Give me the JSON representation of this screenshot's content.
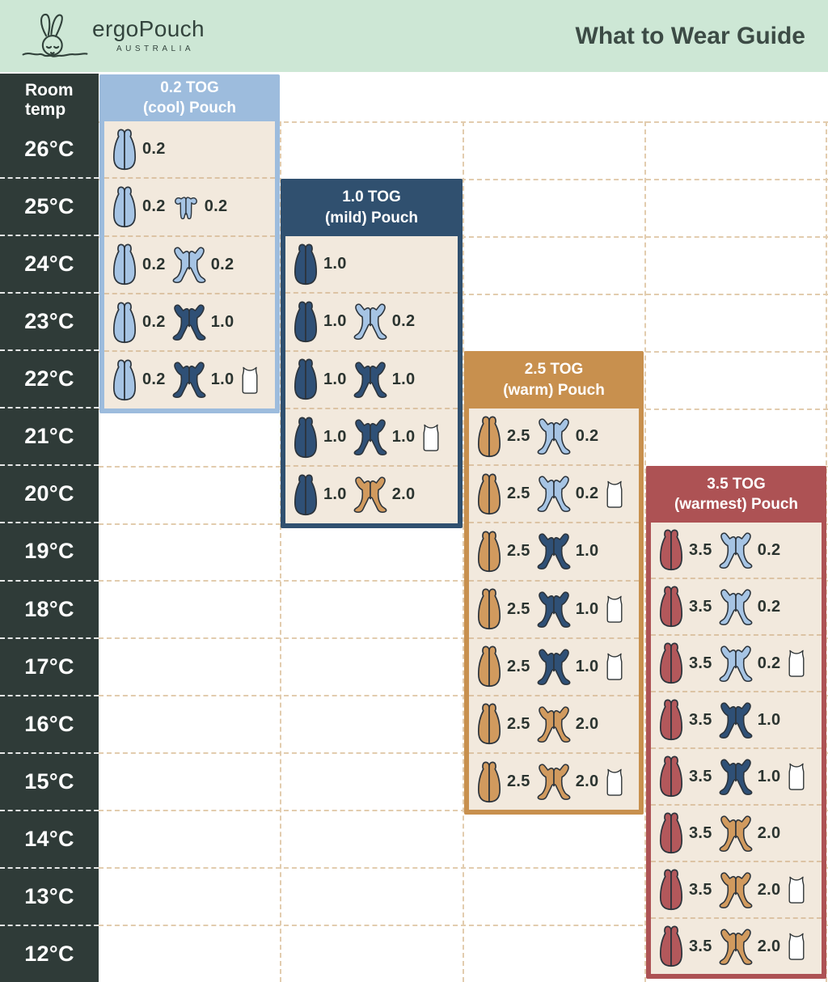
{
  "header": {
    "brand": "ergoPouch",
    "brand_sub": "AUSTRALIA",
    "title": "What to Wear Guide"
  },
  "temp_column": {
    "header": "Room temp",
    "temps": [
      "26°C",
      "25°C",
      "24°C",
      "23°C",
      "22°C",
      "21°C",
      "20°C",
      "19°C",
      "18°C",
      "17°C",
      "16°C",
      "15°C",
      "14°C",
      "13°C",
      "12°C"
    ]
  },
  "chart_data": {
    "type": "table",
    "title": "What to Wear Guide",
    "row_axis": "Room temp (°C)",
    "columns": [
      "0.2 TOG (cool) Pouch",
      "1.0 TOG (mild) Pouch",
      "2.5 TOG (warm) Pouch",
      "3.5 TOG (warmest) Pouch"
    ],
    "panels": [
      {
        "tog": "0.2 TOG",
        "label": "(cool) Pouch",
        "color_key": "lightblue",
        "rows": [
          {
            "temp": "26°C",
            "items": [
              {
                "icon": "pouch",
                "color": "lightblue",
                "value": "0.2"
              }
            ]
          },
          {
            "temp": "25°C",
            "items": [
              {
                "icon": "pouch",
                "color": "lightblue",
                "value": "0.2"
              },
              {
                "icon": "romper",
                "color": "lightblue",
                "value": "0.2"
              }
            ]
          },
          {
            "temp": "24°C",
            "items": [
              {
                "icon": "pouch",
                "color": "lightblue",
                "value": "0.2"
              },
              {
                "icon": "onesie",
                "color": "lightblue",
                "value": "0.2"
              }
            ]
          },
          {
            "temp": "23°C",
            "items": [
              {
                "icon": "pouch",
                "color": "lightblue",
                "value": "0.2"
              },
              {
                "icon": "onesie",
                "color": "navy",
                "value": "1.0"
              }
            ]
          },
          {
            "temp": "22°C",
            "items": [
              {
                "icon": "pouch",
                "color": "lightblue",
                "value": "0.2"
              },
              {
                "icon": "onesie",
                "color": "navy",
                "value": "1.0"
              },
              {
                "icon": "singlet",
                "color": "white",
                "value": ""
              }
            ]
          }
        ]
      },
      {
        "tog": "1.0 TOG",
        "label": "(mild) Pouch",
        "color_key": "navy",
        "rows": [
          {
            "temp": "24°C",
            "items": [
              {
                "icon": "pouch",
                "color": "navy",
                "value": "1.0"
              }
            ]
          },
          {
            "temp": "23°C",
            "items": [
              {
                "icon": "pouch",
                "color": "navy",
                "value": "1.0"
              },
              {
                "icon": "onesie",
                "color": "lightblue",
                "value": "0.2"
              }
            ]
          },
          {
            "temp": "22°C",
            "items": [
              {
                "icon": "pouch",
                "color": "navy",
                "value": "1.0"
              },
              {
                "icon": "onesie",
                "color": "navy",
                "value": "1.0"
              }
            ]
          },
          {
            "temp": "21°C",
            "items": [
              {
                "icon": "pouch",
                "color": "navy",
                "value": "1.0"
              },
              {
                "icon": "onesie",
                "color": "navy",
                "value": "1.0"
              },
              {
                "icon": "singlet",
                "color": "white",
                "value": ""
              }
            ]
          },
          {
            "temp": "20°C",
            "items": [
              {
                "icon": "pouch",
                "color": "navy",
                "value": "1.0"
              },
              {
                "icon": "onesie",
                "color": "tan",
                "value": "2.0"
              }
            ]
          }
        ]
      },
      {
        "tog": "2.5 TOG",
        "label": "(warm) Pouch",
        "color_key": "tan",
        "rows": [
          {
            "temp": "21°C",
            "items": [
              {
                "icon": "pouch",
                "color": "tan",
                "value": "2.5"
              },
              {
                "icon": "onesie",
                "color": "lightblue",
                "value": "0.2"
              }
            ]
          },
          {
            "temp": "20°C",
            "items": [
              {
                "icon": "pouch",
                "color": "tan",
                "value": "2.5"
              },
              {
                "icon": "onesie",
                "color": "lightblue",
                "value": "0.2"
              },
              {
                "icon": "singlet",
                "color": "white",
                "value": ""
              }
            ]
          },
          {
            "temp": "19°C",
            "items": [
              {
                "icon": "pouch",
                "color": "tan",
                "value": "2.5"
              },
              {
                "icon": "onesie",
                "color": "navy",
                "value": "1.0"
              }
            ]
          },
          {
            "temp": "18°C",
            "items": [
              {
                "icon": "pouch",
                "color": "tan",
                "value": "2.5"
              },
              {
                "icon": "onesie",
                "color": "navy",
                "value": "1.0"
              },
              {
                "icon": "singlet",
                "color": "white",
                "value": ""
              }
            ]
          },
          {
            "temp": "17°C",
            "items": [
              {
                "icon": "pouch",
                "color": "tan",
                "value": "2.5"
              },
              {
                "icon": "onesie",
                "color": "navy",
                "value": "1.0"
              },
              {
                "icon": "singlet",
                "color": "white",
                "value": ""
              }
            ]
          },
          {
            "temp": "16°C",
            "items": [
              {
                "icon": "pouch",
                "color": "tan",
                "value": "2.5"
              },
              {
                "icon": "onesie",
                "color": "tan",
                "value": "2.0"
              }
            ]
          },
          {
            "temp": "15°C",
            "items": [
              {
                "icon": "pouch",
                "color": "tan",
                "value": "2.5"
              },
              {
                "icon": "onesie",
                "color": "tan",
                "value": "2.0"
              },
              {
                "icon": "singlet",
                "color": "white",
                "value": ""
              }
            ]
          }
        ]
      },
      {
        "tog": "3.5 TOG",
        "label": "(warmest) Pouch",
        "color_key": "maroon",
        "rows": [
          {
            "temp": "19°C",
            "items": [
              {
                "icon": "pouch",
                "color": "maroon",
                "value": "3.5"
              },
              {
                "icon": "onesie",
                "color": "lightblue",
                "value": "0.2"
              }
            ]
          },
          {
            "temp": "18°C",
            "items": [
              {
                "icon": "pouch",
                "color": "maroon",
                "value": "3.5"
              },
              {
                "icon": "onesie",
                "color": "lightblue",
                "value": "0.2"
              }
            ]
          },
          {
            "temp": "17°C",
            "items": [
              {
                "icon": "pouch",
                "color": "maroon",
                "value": "3.5"
              },
              {
                "icon": "onesie",
                "color": "lightblue",
                "value": "0.2"
              },
              {
                "icon": "singlet",
                "color": "white",
                "value": ""
              }
            ]
          },
          {
            "temp": "16°C",
            "items": [
              {
                "icon": "pouch",
                "color": "maroon",
                "value": "3.5"
              },
              {
                "icon": "onesie",
                "color": "navy",
                "value": "1.0"
              }
            ]
          },
          {
            "temp": "15°C",
            "items": [
              {
                "icon": "pouch",
                "color": "maroon",
                "value": "3.5"
              },
              {
                "icon": "onesie",
                "color": "navy",
                "value": "1.0"
              },
              {
                "icon": "singlet",
                "color": "white",
                "value": ""
              }
            ]
          },
          {
            "temp": "14°C",
            "items": [
              {
                "icon": "pouch",
                "color": "maroon",
                "value": "3.5"
              },
              {
                "icon": "onesie",
                "color": "tan",
                "value": "2.0"
              }
            ]
          },
          {
            "temp": "13°C",
            "items": [
              {
                "icon": "pouch",
                "color": "maroon",
                "value": "3.5"
              },
              {
                "icon": "onesie",
                "color": "tan",
                "value": "2.0"
              },
              {
                "icon": "singlet",
                "color": "white",
                "value": ""
              }
            ]
          },
          {
            "temp": "12°C",
            "items": [
              {
                "icon": "pouch",
                "color": "maroon",
                "value": "3.5"
              },
              {
                "icon": "onesie",
                "color": "tan",
                "value": "2.0"
              },
              {
                "icon": "singlet",
                "color": "white",
                "value": ""
              }
            ]
          }
        ]
      }
    ]
  },
  "colors": {
    "mint": "#cde7d5",
    "dark_text": "#3c4b45",
    "temp_col_bg": "#2f3b38",
    "body_beige": "#f2e9dd",
    "dotted_inside": "#dcc3a4",
    "dotted_outside": "#e2ccae",
    "lightblue": {
      "header": "#9dbcdd",
      "icon": "#a6c4e4"
    },
    "navy": {
      "header": "#30506f",
      "icon": "#2f5076"
    },
    "tan": {
      "header": "#c8904e",
      "icon": "#d19a5e"
    },
    "maroon": {
      "header": "#ad5254",
      "icon": "#b3585b"
    },
    "white": {
      "icon": "#ffffff"
    }
  }
}
